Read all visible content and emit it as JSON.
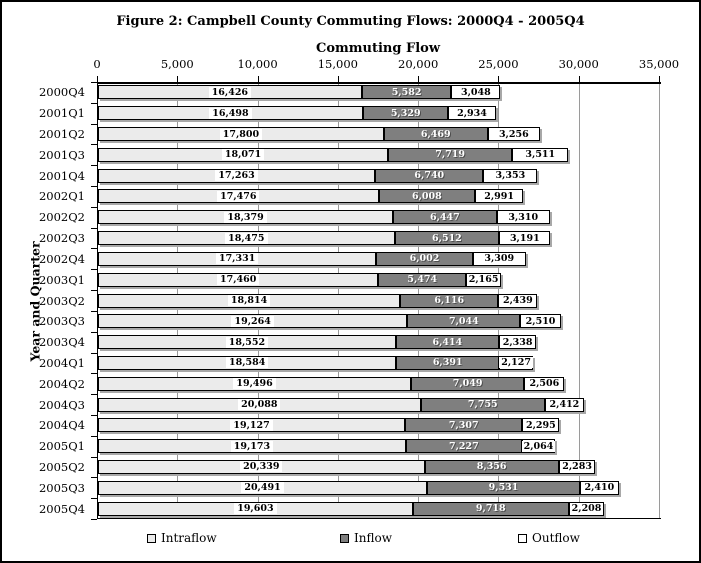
{
  "title": "Figure 2: Campbell County Commuting Flows: 2000Q4 - 2005Q4",
  "chart_data": {
    "type": "bar",
    "orientation": "horizontal-stacked",
    "title": "Figure 2: Campbell County Commuting Flows: 2000Q4 - 2005Q4",
    "xlabel": "Commuting Flow",
    "ylabel": "Year and Quarter",
    "xlim": [
      0,
      35000
    ],
    "x_ticks": [
      0,
      5000,
      10000,
      15000,
      20000,
      25000,
      30000,
      35000
    ],
    "x_tick_labels": [
      "0",
      "5,000",
      "10,000",
      "15,000",
      "20,000",
      "25,000",
      "30,000",
      "35,000"
    ],
    "grid": true,
    "legend_position": "bottom",
    "categories": [
      "2000Q4",
      "2001Q1",
      "2001Q2",
      "2001Q3",
      "2001Q4",
      "2002Q1",
      "2002Q2",
      "2002Q3",
      "2002Q4",
      "2003Q1",
      "2003Q2",
      "2003Q3",
      "2003Q4",
      "2004Q1",
      "2004Q2",
      "2004Q3",
      "2004Q4",
      "2005Q1",
      "2005Q2",
      "2005Q3",
      "2005Q4"
    ],
    "series": [
      {
        "name": "Intraflow",
        "color": "#ebebeb",
        "label_color": "#000000",
        "values": [
          16426,
          16498,
          17800,
          18071,
          17263,
          17476,
          18379,
          18475,
          17331,
          17460,
          18814,
          19264,
          18552,
          18584,
          19496,
          20088,
          19127,
          19173,
          20339,
          20491,
          19603
        ]
      },
      {
        "name": "Inflow",
        "color": "#7f7f7f",
        "label_color": "#ffffff",
        "values": [
          5582,
          5329,
          6469,
          7719,
          6740,
          6008,
          6447,
          6512,
          6002,
          5474,
          6116,
          7044,
          6414,
          6391,
          7049,
          7755,
          7307,
          7227,
          8356,
          9531,
          9718
        ]
      },
      {
        "name": "Outflow",
        "color": "#ffffff",
        "label_color": "#000000",
        "values": [
          3048,
          2934,
          3256,
          3511,
          3353,
          2991,
          3310,
          3191,
          3309,
          2165,
          2439,
          2510,
          2338,
          2127,
          2506,
          2412,
          2295,
          2064,
          2283,
          2410,
          2208
        ]
      }
    ],
    "colors": {
      "axis": "#000000",
      "gridline": "#9a9a9a",
      "bar_shadow": "#a8a8a8"
    }
  }
}
